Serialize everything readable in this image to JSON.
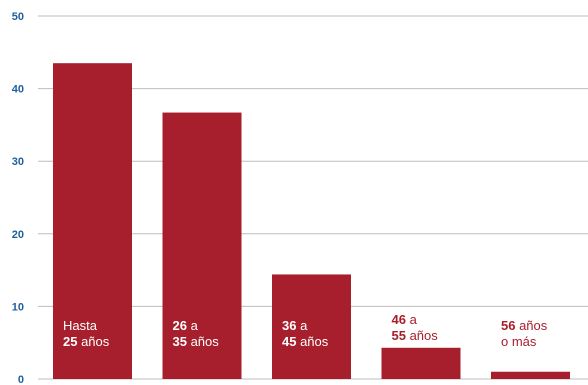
{
  "chart_data": {
    "type": "bar",
    "categories": [
      {
        "line1_bold": "",
        "line1_rest": "Hasta",
        "line2_bold": "25",
        "line2_rest": " años"
      },
      {
        "line1_bold": "26",
        "line1_rest": " a",
        "line2_bold": "35",
        "line2_rest": " años"
      },
      {
        "line1_bold": "36",
        "line1_rest": " a",
        "line2_bold": "45",
        "line2_rest": " años"
      },
      {
        "line1_bold": "46",
        "line1_rest": " a",
        "line2_bold": "55",
        "line2_rest": " años"
      },
      {
        "line1_bold": "56",
        "line1_rest": " años",
        "line2_bold": "",
        "line2_rest": "o más"
      }
    ],
    "category_text": [
      "Hasta 25 años",
      "26 a 35 años",
      "36 a 45 años",
      "46 a 55 años",
      "56 años o más"
    ],
    "values": [
      43.5,
      36.7,
      14.4,
      4.3,
      1.0
    ],
    "ylim": [
      0,
      50
    ],
    "yticks": [
      "0",
      "10",
      "20",
      "30",
      "40",
      "50"
    ],
    "grid": true,
    "colors": {
      "bar": "#a71e2c",
      "label_inside": "#ffffff",
      "label_outside": "#a71e2c",
      "tick": "#1f5e9e",
      "grid": "#bdbdbd"
    }
  }
}
